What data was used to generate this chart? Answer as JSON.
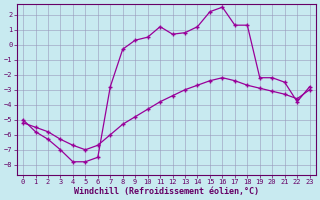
{
  "xlabel": "Windchill (Refroidissement éolien,°C)",
  "bg_color": "#c8eaf0",
  "grid_color": "#9999bb",
  "line_color": "#990099",
  "xlim_min": -0.5,
  "xlim_max": 23.5,
  "ylim_min": -8.7,
  "ylim_max": 2.7,
  "xticks": [
    0,
    1,
    2,
    3,
    4,
    5,
    6,
    7,
    8,
    9,
    10,
    11,
    12,
    13,
    14,
    15,
    16,
    17,
    18,
    19,
    20,
    21,
    22,
    23
  ],
  "yticks": [
    -8,
    -7,
    -6,
    -5,
    -4,
    -3,
    -2,
    -1,
    0,
    1,
    2
  ],
  "curve1_x": [
    0,
    1,
    2,
    3,
    4,
    5,
    6,
    7,
    8,
    9,
    10,
    11,
    12,
    13,
    14,
    15,
    16,
    17,
    18,
    19,
    20,
    21,
    22,
    23
  ],
  "curve1_y": [
    -5.0,
    -5.8,
    -6.3,
    -7.0,
    -7.8,
    -7.8,
    -7.5,
    -2.8,
    -0.3,
    0.3,
    0.5,
    1.2,
    0.7,
    0.8,
    1.2,
    2.2,
    2.5,
    1.3,
    1.3,
    -2.2,
    -2.2,
    -2.5,
    -3.8,
    -2.8
  ],
  "curve2_x": [
    0,
    1,
    2,
    3,
    4,
    5,
    6,
    7,
    8,
    9,
    10,
    11,
    12,
    13,
    14,
    15,
    16,
    17,
    18,
    19,
    20,
    21,
    22,
    23
  ],
  "curve2_y": [
    -5.2,
    -5.5,
    -5.8,
    -6.3,
    -6.7,
    -7.0,
    -6.7,
    -6.0,
    -5.3,
    -4.8,
    -4.3,
    -3.8,
    -3.4,
    -3.0,
    -2.7,
    -2.4,
    -2.2,
    -2.4,
    -2.7,
    -2.9,
    -3.1,
    -3.3,
    -3.6,
    -3.0
  ],
  "font_color": "#660066",
  "tick_fontsize": 5,
  "label_fontsize": 6,
  "marker_size": 3.5,
  "marker_ew": 1.0,
  "line_width": 0.9
}
